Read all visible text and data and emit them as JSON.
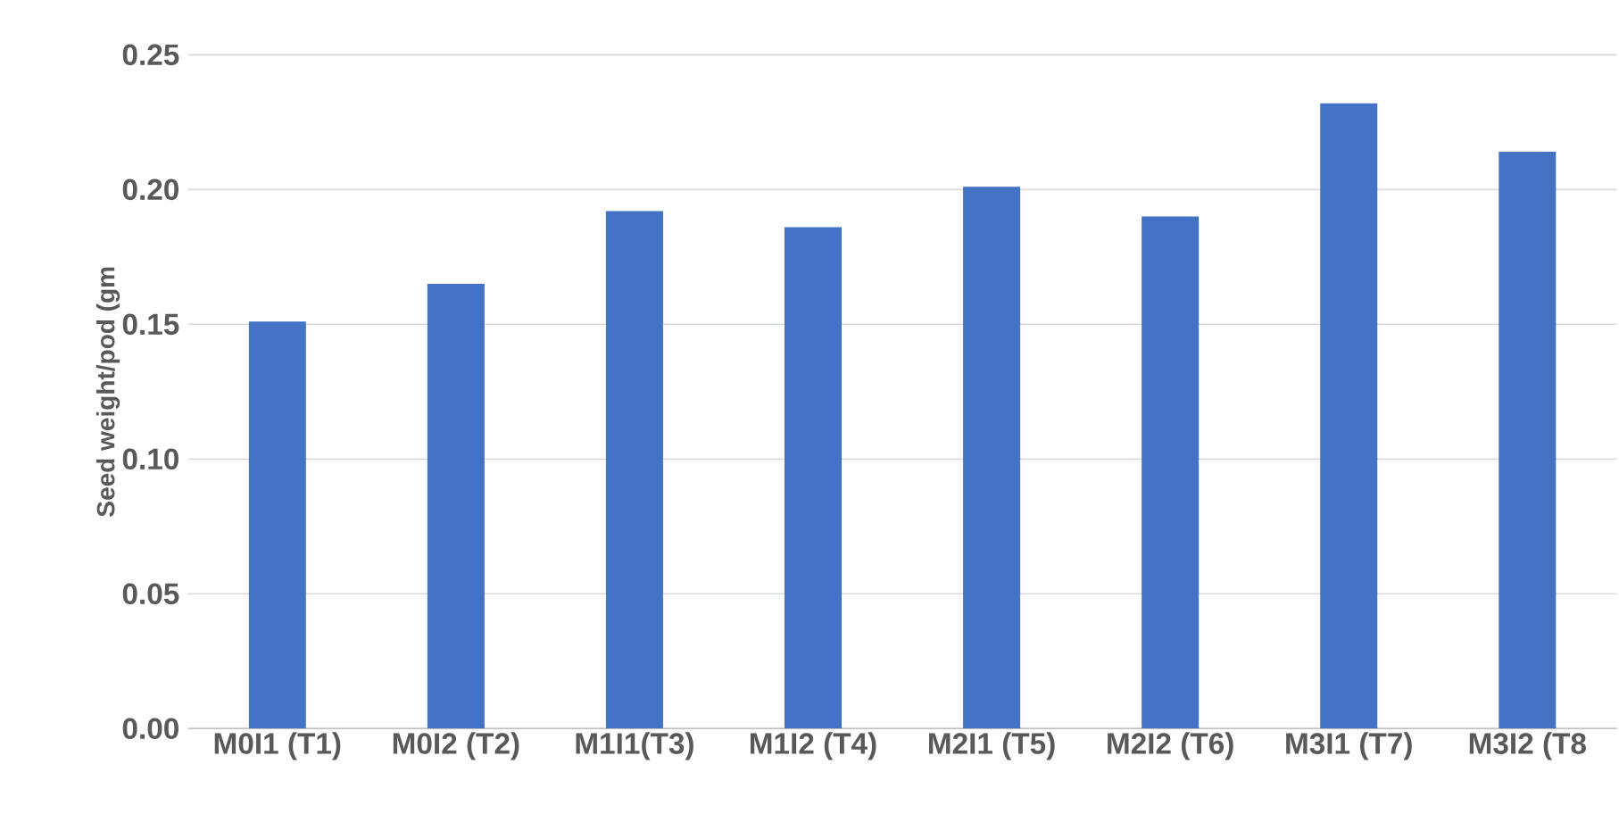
{
  "chart_data": {
    "type": "bar",
    "ylabel": "Seed weight/pod (gm",
    "categories": [
      "M0I1 (T1)",
      "M0I2 (T2)",
      "M1I1(T3)",
      "M1I2 (T4)",
      "M2I1 (T5)",
      "M2I2 (T6)",
      "M3I1 (T7)",
      "M3I2 (T8"
    ],
    "values": [
      0.151,
      0.165,
      0.192,
      0.186,
      0.201,
      0.19,
      0.232,
      0.214
    ],
    "color": "#4472c4",
    "ylim": [
      0,
      0.25
    ],
    "yticks": [
      {
        "value": 0,
        "label": "0.00"
      },
      {
        "value": 0.05,
        "label": "0.05"
      },
      {
        "value": 0.1,
        "label": "0.10"
      },
      {
        "value": 0.15,
        "label": "0.15"
      },
      {
        "value": 0.2,
        "label": "0.20"
      },
      {
        "value": 0.25,
        "label": "0.25"
      }
    ],
    "grid": "y"
  }
}
